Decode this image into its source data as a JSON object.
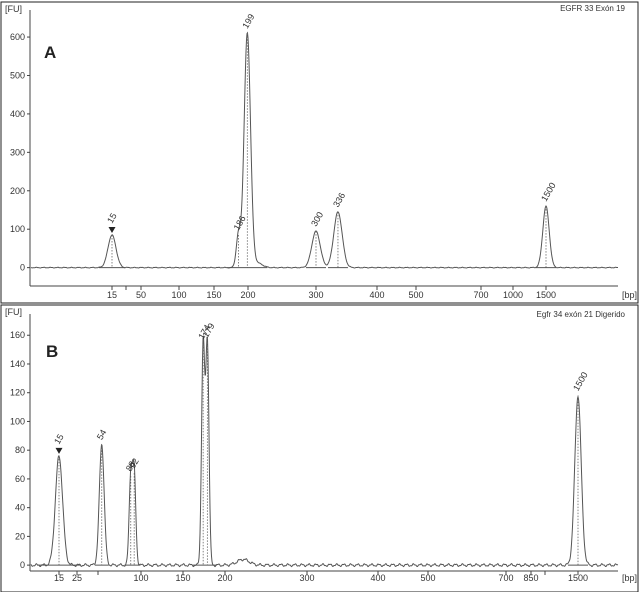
{
  "chart_data": [
    {
      "type": "line",
      "panel_letter": "A",
      "sample_title": "EGFR 33 Exón 19",
      "ylabel": "[FU]",
      "xlabel": "[bp]",
      "ylim": [
        -40,
        660
      ],
      "y_ticks": [
        0,
        100,
        200,
        300,
        400,
        500,
        600
      ],
      "x_ticks": [
        {
          "label": "15",
          "bp": 15
        },
        {
          "label": "50",
          "bp": 50
        },
        {
          "label": "100",
          "bp": 100
        },
        {
          "label": "150",
          "bp": 150
        },
        {
          "label": "200",
          "bp": 200
        },
        {
          "label": "300",
          "bp": 300
        },
        {
          "label": "400",
          "bp": 400
        },
        {
          "label": "500",
          "bp": 500
        },
        {
          "label": "700",
          "bp": 700
        },
        {
          "label": "1000",
          "bp": 1000
        },
        {
          "label": "1500",
          "bp": 1500
        }
      ],
      "peaks": [
        {
          "label": "15",
          "bp": 15,
          "height": 85,
          "marker": true
        },
        {
          "label": "186",
          "bp": 186,
          "height": 85
        },
        {
          "label": "199",
          "bp": 199,
          "height": 610
        },
        {
          "label": "300",
          "bp": 300,
          "height": 95
        },
        {
          "label": "336",
          "bp": 336,
          "height": 145
        },
        {
          "label": "1500",
          "bp": 1500,
          "height": 160
        }
      ],
      "grid": false
    },
    {
      "type": "line",
      "panel_letter": "B",
      "sample_title": "Egfr 34 exón 21 Digerido",
      "ylabel": "[FU]",
      "xlabel": "[bp]",
      "ylim": [
        -2,
        172
      ],
      "y_ticks": [
        0,
        20,
        40,
        60,
        80,
        100,
        120,
        140,
        160
      ],
      "x_ticks": [
        {
          "label": "15",
          "bp": 15
        },
        {
          "label": "25",
          "bp": 25
        },
        {
          "label": "100",
          "bp": 100
        },
        {
          "label": "150",
          "bp": 150
        },
        {
          "label": "200",
          "bp": 200
        },
        {
          "label": "300",
          "bp": 300
        },
        {
          "label": "400",
          "bp": 400
        },
        {
          "label": "500",
          "bp": 500
        },
        {
          "label": "700",
          "bp": 700
        },
        {
          "label": "850",
          "bp": 850
        },
        {
          "label": "1500",
          "bp": 1500
        }
      ],
      "peaks": [
        {
          "label": "15",
          "bp": 15,
          "height": 76,
          "marker": true
        },
        {
          "label": "54",
          "bp": 54,
          "height": 84
        },
        {
          "label": "88",
          "bp": 88,
          "height": 62
        },
        {
          "label": "92",
          "bp": 92,
          "height": 64
        },
        {
          "label": "174",
          "bp": 174,
          "height": 154
        },
        {
          "label": "179",
          "bp": 179,
          "height": 155
        },
        {
          "label": "1500",
          "bp": 1500,
          "height": 118
        }
      ],
      "grid": false
    }
  ]
}
